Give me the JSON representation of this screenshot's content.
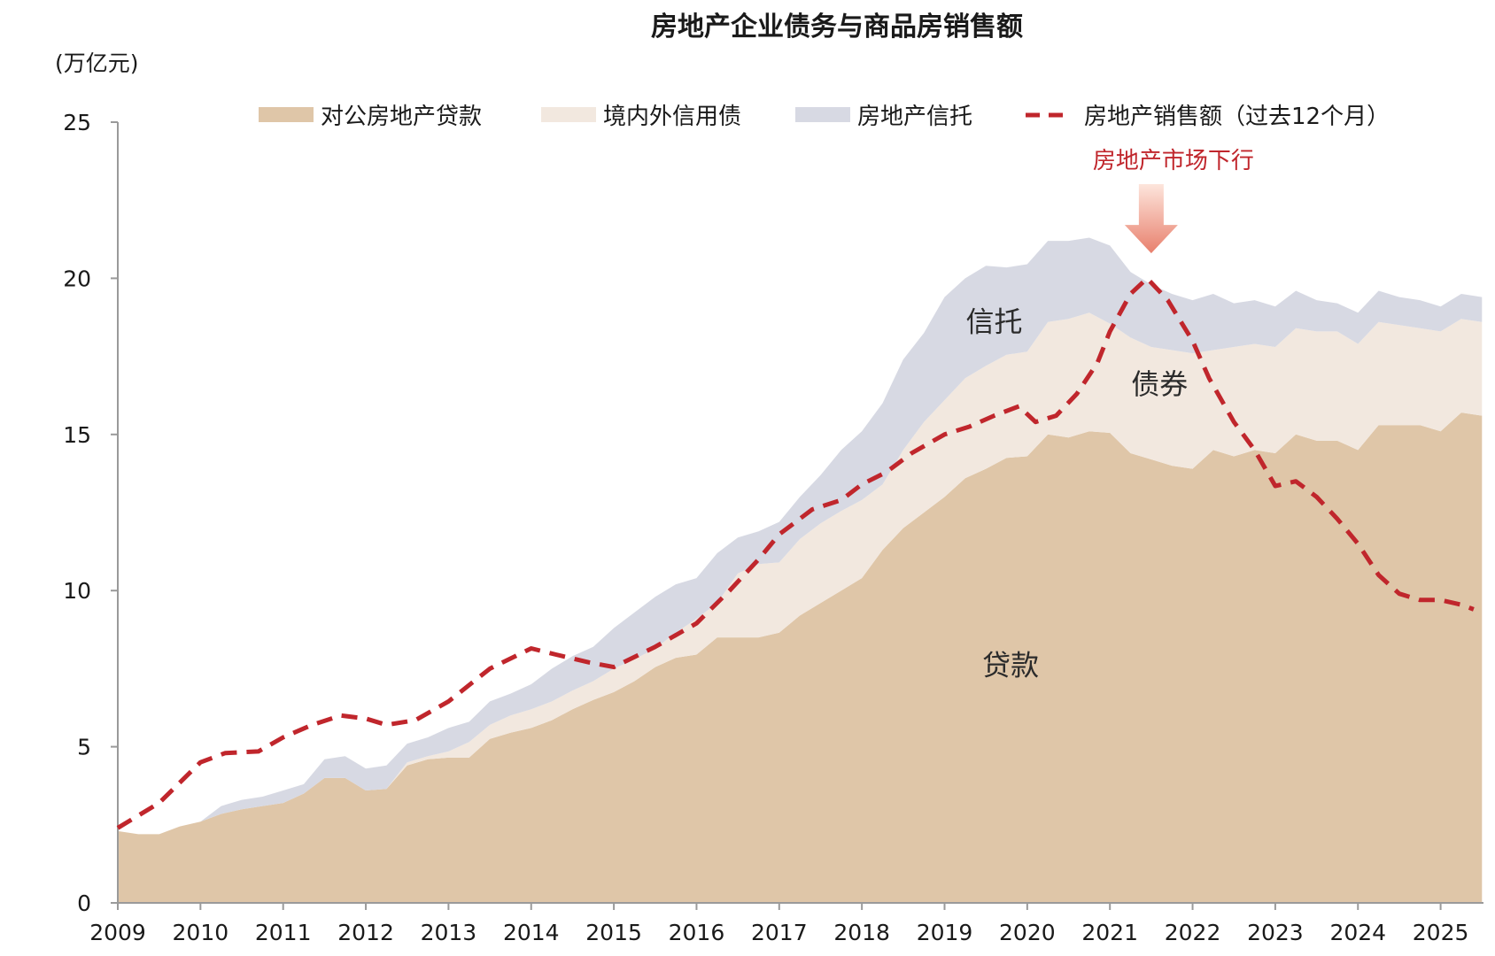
{
  "chart_data": {
    "type": "area",
    "title": "房地产企业债务与商品房销售额",
    "ylabel": "(万亿元)",
    "xlabel": "",
    "ylim": [
      0,
      25
    ],
    "yticks": [
      0,
      5,
      10,
      15,
      20,
      25
    ],
    "xlim": [
      2009,
      2025.5
    ],
    "xticks": [
      2009,
      2010,
      2011,
      2012,
      2013,
      2014,
      2015,
      2016,
      2017,
      2018,
      2019,
      2020,
      2021,
      2022,
      2023,
      2024,
      2025
    ],
    "x": [
      2009.0,
      2009.25,
      2009.5,
      2009.75,
      2010.0,
      2010.25,
      2010.5,
      2010.75,
      2011.0,
      2011.25,
      2011.5,
      2011.75,
      2012.0,
      2012.25,
      2012.5,
      2012.75,
      2013.0,
      2013.25,
      2013.5,
      2013.75,
      2014.0,
      2014.25,
      2014.5,
      2014.75,
      2015.0,
      2015.25,
      2015.5,
      2015.75,
      2016.0,
      2016.25,
      2016.5,
      2016.75,
      2017.0,
      2017.25,
      2017.5,
      2017.75,
      2018.0,
      2018.25,
      2018.5,
      2018.75,
      2019.0,
      2019.25,
      2019.5,
      2019.75,
      2020.0,
      2020.25,
      2020.5,
      2020.75,
      2021.0,
      2021.25,
      2021.5,
      2021.75,
      2022.0,
      2022.25,
      2022.5,
      2022.75,
      2023.0,
      2023.25,
      2023.5,
      2023.75,
      2024.0,
      2024.25,
      2024.5,
      2024.75,
      2025.0,
      2025.25,
      2025.5
    ],
    "stack_series": [
      {
        "name": "对公房地产贷款",
        "color": "#dfc6a8",
        "values": [
          2.3,
          2.2,
          2.2,
          2.45,
          2.6,
          2.85,
          3.0,
          3.1,
          3.2,
          3.5,
          4.0,
          4.0,
          3.6,
          3.65,
          4.4,
          4.6,
          4.65,
          4.65,
          5.25,
          5.45,
          5.6,
          5.85,
          6.2,
          6.5,
          6.75,
          7.1,
          7.55,
          7.85,
          7.95,
          8.5,
          8.5,
          8.5,
          8.65,
          9.2,
          9.6,
          10.0,
          10.4,
          11.3,
          12.0,
          12.5,
          13.0,
          13.6,
          13.9,
          14.25,
          14.3,
          15.0,
          14.9,
          15.1,
          15.05,
          14.4,
          14.2,
          14.0,
          13.9,
          14.5,
          14.3,
          14.5,
          14.4,
          15.0,
          14.8,
          14.8,
          14.5,
          15.3,
          15.3,
          15.3,
          15.1,
          15.7,
          15.6
        ]
      },
      {
        "name": "境内外信用债",
        "color": "#f2e8df",
        "values": [
          0.0,
          0.0,
          0.0,
          0.0,
          0.0,
          0.0,
          0.0,
          0.0,
          0.0,
          0.0,
          0.0,
          0.0,
          0.0,
          0.0,
          0.1,
          0.1,
          0.2,
          0.5,
          0.45,
          0.55,
          0.6,
          0.6,
          0.6,
          0.6,
          0.75,
          0.7,
          0.6,
          0.8,
          1.15,
          1.1,
          2.05,
          2.35,
          2.25,
          2.45,
          2.55,
          2.55,
          2.5,
          2.1,
          2.5,
          2.9,
          3.1,
          3.2,
          3.3,
          3.3,
          3.35,
          3.6,
          3.8,
          3.8,
          3.5,
          3.7,
          3.6,
          3.7,
          3.7,
          3.2,
          3.5,
          3.4,
          3.4,
          3.4,
          3.5,
          3.5,
          3.4,
          3.3,
          3.2,
          3.1,
          3.2,
          3.0,
          3.0
        ]
      },
      {
        "name": "房地产信托",
        "color": "#d7d9e3",
        "values": [
          0.0,
          0.0,
          0.0,
          0.0,
          0.0,
          0.25,
          0.3,
          0.3,
          0.4,
          0.3,
          0.6,
          0.7,
          0.7,
          0.75,
          0.6,
          0.6,
          0.75,
          0.65,
          0.75,
          0.7,
          0.8,
          1.05,
          1.1,
          1.1,
          1.3,
          1.5,
          1.65,
          1.55,
          1.3,
          1.6,
          1.15,
          1.05,
          1.3,
          1.35,
          1.55,
          1.95,
          2.2,
          2.6,
          2.9,
          2.85,
          3.3,
          3.2,
          3.2,
          2.8,
          2.8,
          2.6,
          2.5,
          2.4,
          2.5,
          2.1,
          2.0,
          1.8,
          1.7,
          1.8,
          1.4,
          1.4,
          1.3,
          1.2,
          1.0,
          0.9,
          1.0,
          1.0,
          0.9,
          0.9,
          0.8,
          0.8,
          0.8
        ]
      }
    ],
    "line_series": {
      "name": "房地产销售额（过去12个月）",
      "color": "#c0262c",
      "x": [
        2009.0,
        2009.5,
        2010.0,
        2010.3,
        2010.7,
        2011.0,
        2011.35,
        2011.7,
        2012.0,
        2012.25,
        2012.6,
        2013.0,
        2013.5,
        2014.0,
        2014.3,
        2014.7,
        2015.0,
        2015.5,
        2016.0,
        2016.4,
        2016.75,
        2017.0,
        2017.4,
        2017.75,
        2018.0,
        2018.3,
        2018.6,
        2019.0,
        2019.3,
        2019.6,
        2019.9,
        2020.1,
        2020.35,
        2020.6,
        2020.85,
        2021.0,
        2021.25,
        2021.45,
        2021.7,
        2022.0,
        2022.2,
        2022.5,
        2022.75,
        2023.0,
        2023.25,
        2023.5,
        2023.75,
        2024.0,
        2024.25,
        2024.5,
        2024.75,
        2025.0,
        2025.25,
        2025.4
      ],
      "values": [
        2.4,
        3.2,
        4.5,
        4.8,
        4.85,
        5.3,
        5.7,
        6.0,
        5.9,
        5.7,
        5.85,
        6.45,
        7.5,
        8.15,
        7.95,
        7.7,
        7.55,
        8.2,
        8.95,
        10.0,
        11.0,
        11.8,
        12.6,
        12.9,
        13.4,
        13.8,
        14.4,
        15.0,
        15.25,
        15.6,
        15.9,
        15.4,
        15.6,
        16.3,
        17.3,
        18.3,
        19.5,
        20.0,
        19.3,
        18.0,
        16.8,
        15.4,
        14.5,
        13.35,
        13.5,
        13.0,
        12.3,
        11.5,
        10.5,
        9.9,
        9.7,
        9.7,
        9.55,
        9.4
      ]
    },
    "area_labels": [
      {
        "text": "信托",
        "x": 2019.6,
        "y": 18.3
      },
      {
        "text": "债券",
        "x": 2021.6,
        "y": 16.3
      },
      {
        "text": "贷款",
        "x": 2019.8,
        "y": 7.3
      }
    ],
    "annotation": {
      "text": "房地产市场下行",
      "arrow_x": 2021.5,
      "arrow_tip_y": 20.8
    },
    "legend": {
      "placement": "top",
      "items": [
        {
          "label": "对公房地产贷款",
          "kind": "box",
          "color": "#dfc6a8"
        },
        {
          "label": "境内外信用债",
          "kind": "box",
          "color": "#f2e8df"
        },
        {
          "label": "房地产信托",
          "kind": "box",
          "color": "#d7d9e3"
        },
        {
          "label": "房地产销售额（过去12个月）",
          "kind": "dash",
          "color": "#c0262c"
        }
      ]
    },
    "colors": {
      "axis": "#9a9a9a",
      "text": "#1a1a1a",
      "annotation": "#c0262c",
      "arrow_top": "#fde5dc",
      "arrow_bottom": "#e8806d"
    }
  }
}
